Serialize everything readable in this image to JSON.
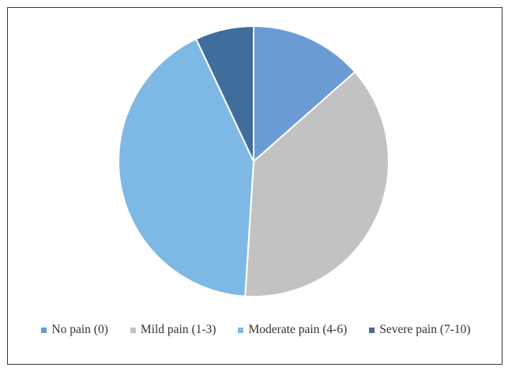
{
  "chart_data": {
    "type": "pie",
    "categories": [
      "No pain (0)",
      "Mild pain (1-3)",
      "Moderate pain (4-6)",
      "Severe pain (7-10)"
    ],
    "values": [
      13.5,
      37.5,
      42.0,
      7.0
    ],
    "colors": [
      "#6a9bd4",
      "#c2c2c2",
      "#7db9e4",
      "#3f6d9c"
    ],
    "title": "",
    "legend_position": "bottom",
    "start_angle_deg": 0,
    "direction": "clockwise"
  }
}
